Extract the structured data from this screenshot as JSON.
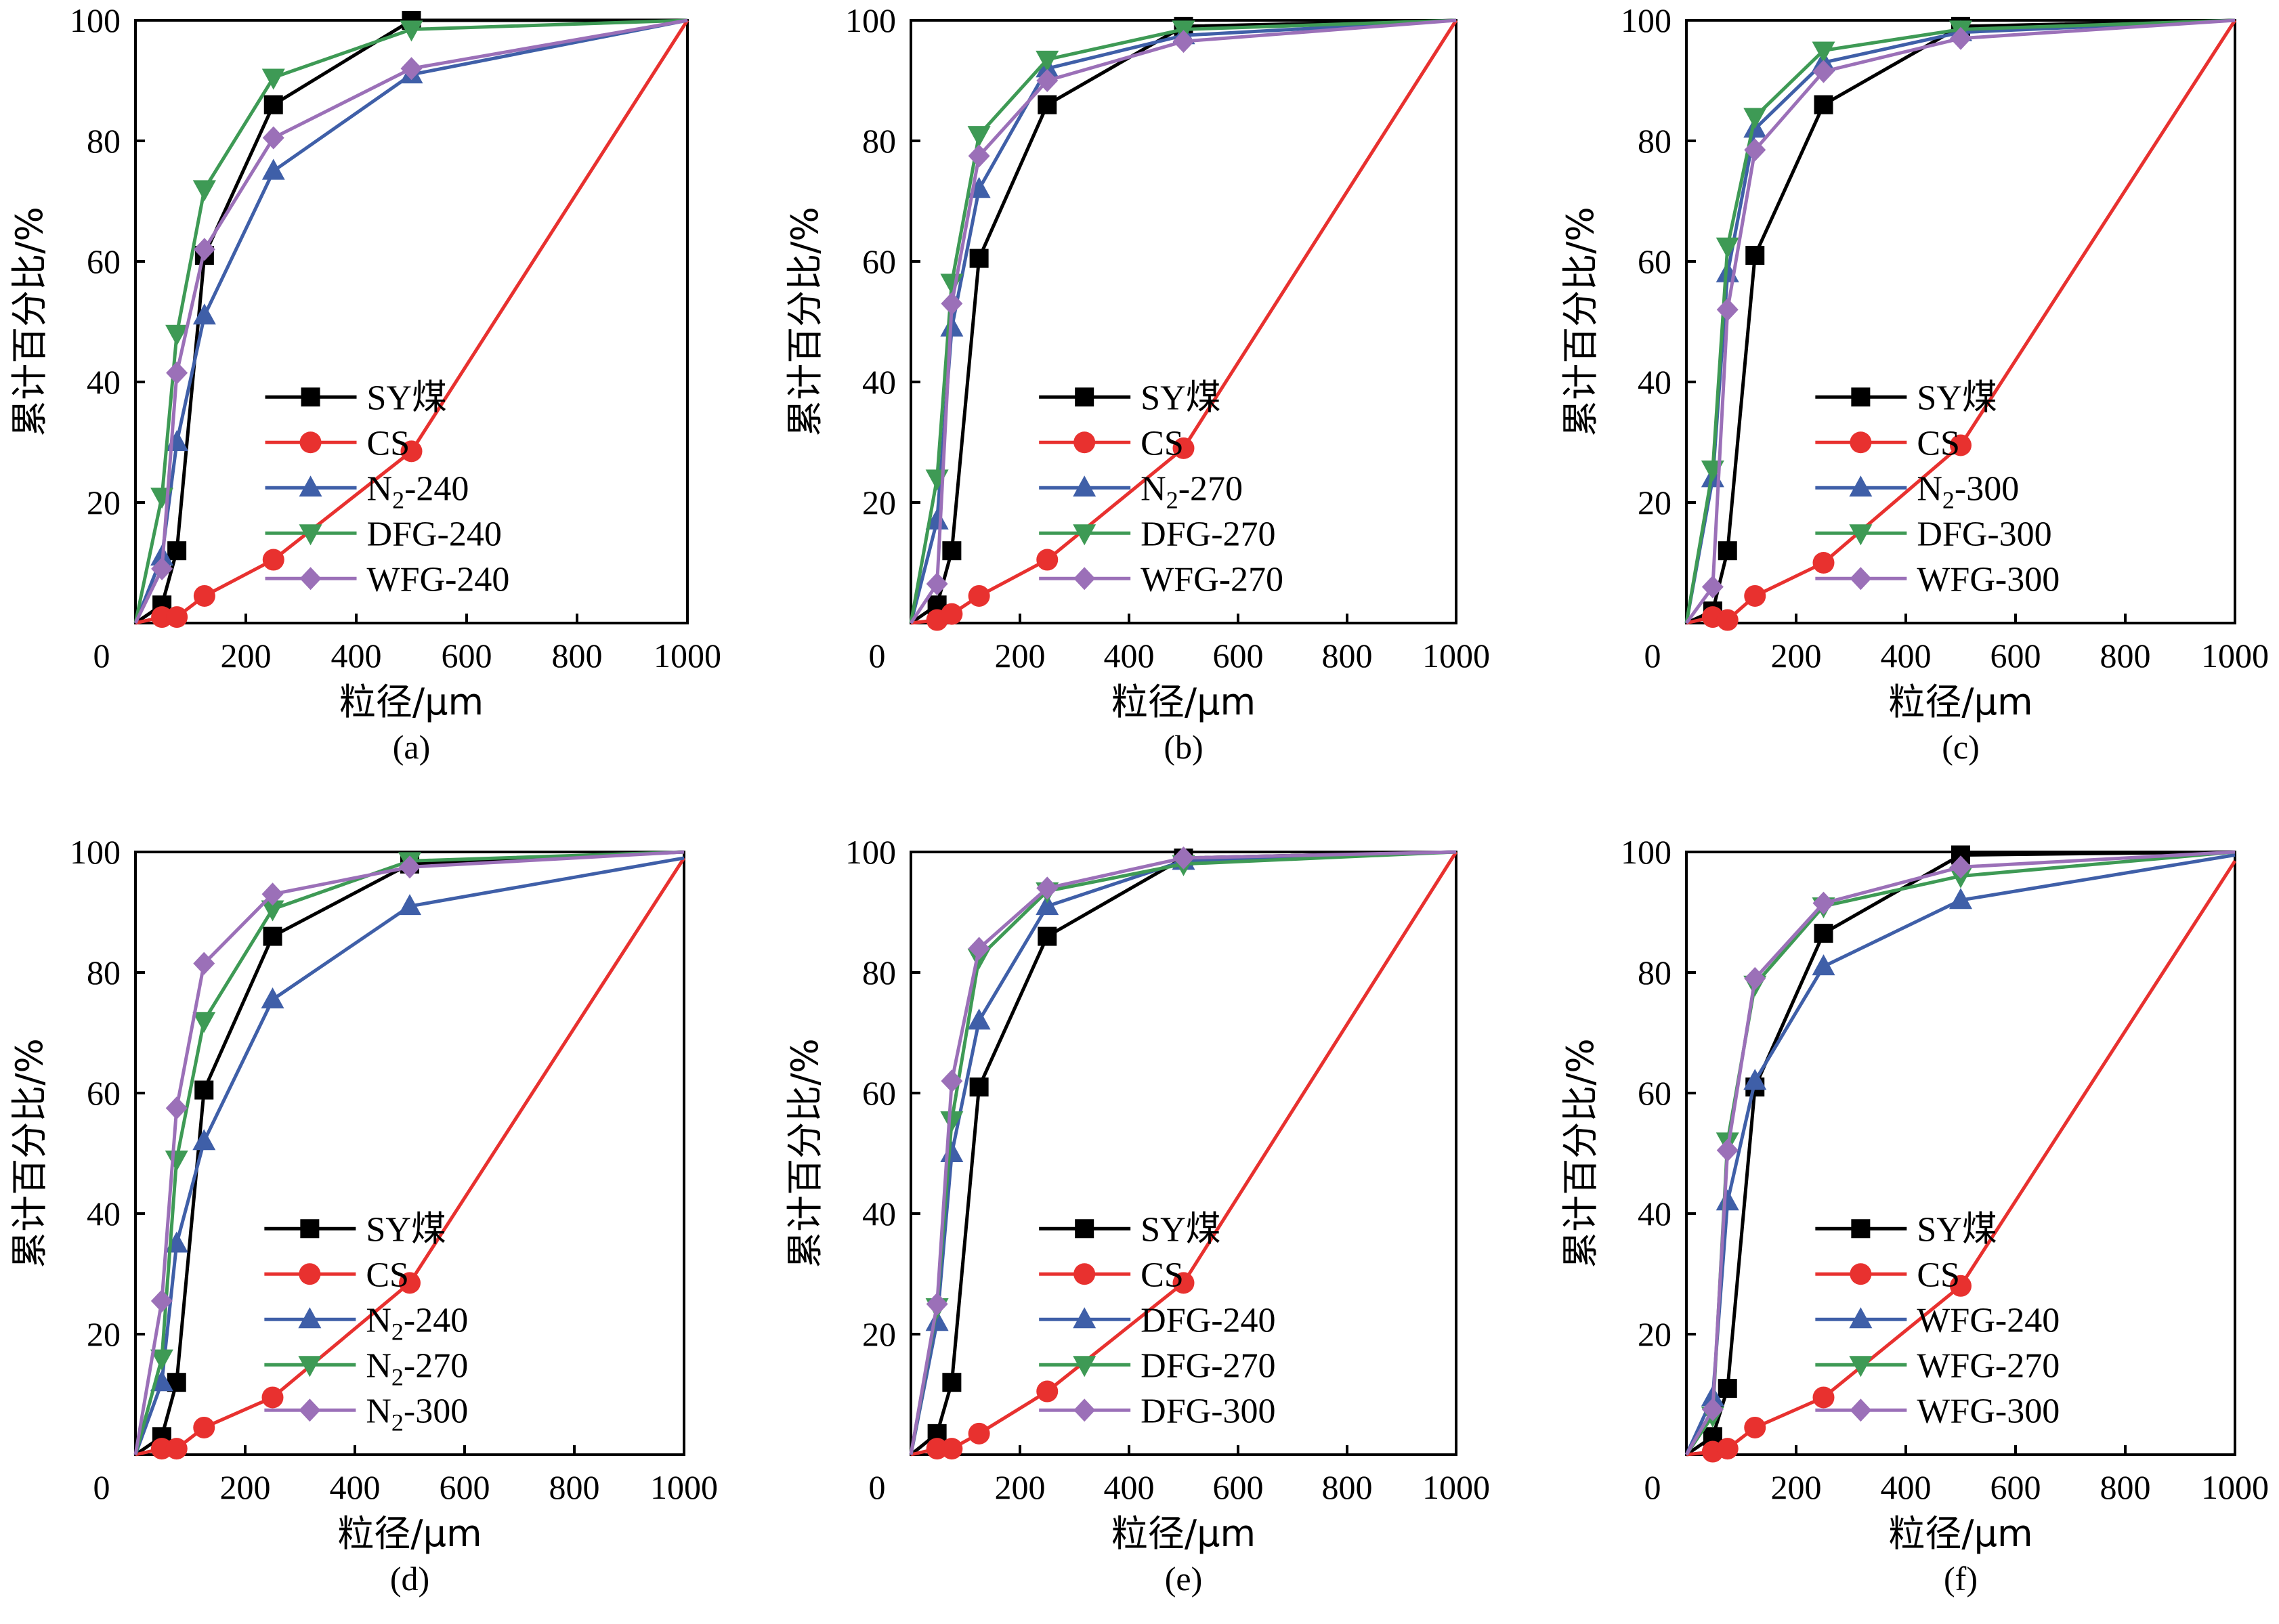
{
  "figure": {
    "x_title": "粒径/μm",
    "y_title": "累计百分比/%"
  },
  "chart_data": [
    {
      "type": "line",
      "panel_label": "(a)",
      "xlabel": "粒径/μm",
      "ylabel": "累计百分比/%",
      "xlim": [
        0,
        1000
      ],
      "ylim": [
        0,
        100
      ],
      "x_ticks": [
        0,
        200,
        400,
        600,
        800,
        1000
      ],
      "y_ticks": [
        20,
        40,
        60,
        80,
        100
      ],
      "legend_position": "bottom-right",
      "series": [
        {
          "name": "SY煤",
          "color": "#000000",
          "marker": "square",
          "x": [
            0,
            48,
            75,
            125,
            250,
            500,
            1000
          ],
          "y": [
            0,
            3,
            12,
            61,
            86,
            100,
            100
          ]
        },
        {
          "name": "CS",
          "color": "#e8312f",
          "marker": "circle",
          "x": [
            0,
            48,
            75,
            125,
            250,
            500,
            1000
          ],
          "y": [
            0,
            1,
            1,
            4.5,
            10.5,
            28.5,
            100
          ]
        },
        {
          "name": "N2-240",
          "label_main": "N",
          "label_sub": "2",
          "label_rest": "-240",
          "color": "#3f5fa8",
          "marker": "triangle-up",
          "x": [
            0,
            48,
            75,
            125,
            250,
            500,
            1000
          ],
          "y": [
            0,
            11,
            30,
            51,
            75,
            91,
            100
          ]
        },
        {
          "name": "DFG-240",
          "color": "#3e9a55",
          "marker": "triangle-down",
          "x": [
            0,
            48,
            75,
            125,
            250,
            500,
            1000
          ],
          "y": [
            0,
            21,
            48,
            72,
            90.5,
            98.5,
            100
          ]
        },
        {
          "name": "WFG-240",
          "color": "#9b70b8",
          "marker": "diamond",
          "x": [
            0,
            48,
            75,
            125,
            250,
            500,
            1000
          ],
          "y": [
            0,
            9,
            41.5,
            62,
            80.5,
            92,
            100
          ]
        }
      ]
    },
    {
      "type": "line",
      "panel_label": "(b)",
      "xlabel": "粒径/μm",
      "ylabel": "累计百分比/%",
      "xlim": [
        0,
        1000
      ],
      "ylim": [
        0,
        100
      ],
      "x_ticks": [
        0,
        200,
        400,
        600,
        800,
        1000
      ],
      "y_ticks": [
        20,
        40,
        60,
        80,
        100
      ],
      "legend_position": "bottom-right",
      "series": [
        {
          "name": "SY煤",
          "color": "#000000",
          "marker": "square",
          "x": [
            0,
            48,
            75,
            125,
            250,
            500,
            1000
          ],
          "y": [
            0,
            3,
            12,
            60.5,
            86,
            99,
            100
          ]
        },
        {
          "name": "CS",
          "color": "#e8312f",
          "marker": "circle",
          "x": [
            0,
            48,
            75,
            125,
            250,
            500,
            1000
          ],
          "y": [
            0,
            0.5,
            1.5,
            4.5,
            10.5,
            29,
            100
          ]
        },
        {
          "name": "N2-270",
          "label_main": "N",
          "label_sub": "2",
          "label_rest": "-270",
          "color": "#3f5fa8",
          "marker": "triangle-up",
          "x": [
            0,
            48,
            75,
            125,
            250,
            500,
            1000
          ],
          "y": [
            0,
            17,
            49,
            72,
            92,
            97.5,
            100
          ]
        },
        {
          "name": "DFG-270",
          "color": "#3e9a55",
          "marker": "triangle-down",
          "x": [
            0,
            48,
            75,
            125,
            250,
            500,
            1000
          ],
          "y": [
            0,
            24,
            56.5,
            81,
            93.5,
            98.5,
            100
          ]
        },
        {
          "name": "WFG-270",
          "color": "#9b70b8",
          "marker": "diamond",
          "x": [
            0,
            48,
            75,
            125,
            250,
            500,
            1000
          ],
          "y": [
            0,
            6.5,
            53,
            77.5,
            90,
            96.5,
            100
          ]
        }
      ]
    },
    {
      "type": "line",
      "panel_label": "(c)",
      "xlabel": "粒径/μm",
      "ylabel": "累计百分比/%",
      "xlim": [
        0,
        1000
      ],
      "ylim": [
        0,
        100
      ],
      "x_ticks": [
        0,
        200,
        400,
        600,
        800,
        1000
      ],
      "y_ticks": [
        20,
        40,
        60,
        80,
        100
      ],
      "legend_position": "bottom-right",
      "series": [
        {
          "name": "SY煤",
          "color": "#000000",
          "marker": "square",
          "x": [
            0,
            48,
            75,
            125,
            250,
            500,
            1000
          ],
          "y": [
            0,
            2,
            12,
            61,
            86,
            99,
            100
          ]
        },
        {
          "name": "CS",
          "color": "#e8312f",
          "marker": "circle",
          "x": [
            0,
            48,
            75,
            125,
            250,
            500,
            1000
          ],
          "y": [
            0,
            1,
            0.5,
            4.5,
            10,
            29.5,
            100
          ]
        },
        {
          "name": "N2-300",
          "label_main": "N",
          "label_sub": "2",
          "label_rest": "-300",
          "color": "#3f5fa8",
          "marker": "triangle-up",
          "x": [
            0,
            48,
            75,
            125,
            250,
            500,
            1000
          ],
          "y": [
            0,
            24,
            58,
            82,
            93,
            98,
            100
          ]
        },
        {
          "name": "DFG-300",
          "color": "#3e9a55",
          "marker": "triangle-down",
          "x": [
            0,
            48,
            75,
            125,
            250,
            500,
            1000
          ],
          "y": [
            0,
            25.5,
            62.5,
            84,
            95,
            98.5,
            100
          ]
        },
        {
          "name": "WFG-300",
          "color": "#9b70b8",
          "marker": "diamond",
          "x": [
            0,
            48,
            75,
            125,
            250,
            500,
            1000
          ],
          "y": [
            0,
            6,
            52,
            78.5,
            91.5,
            97,
            100
          ]
        }
      ]
    },
    {
      "type": "line",
      "panel_label": "(d)",
      "xlabel": "粒径/μm",
      "ylabel": "累计百分比/%",
      "xlim": [
        0,
        1000
      ],
      "ylim": [
        0,
        100
      ],
      "x_ticks": [
        0,
        200,
        400,
        600,
        800,
        1000
      ],
      "y_ticks": [
        20,
        40,
        60,
        80,
        100
      ],
      "legend_position": "bottom-right",
      "series": [
        {
          "name": "SY煤",
          "color": "#000000",
          "marker": "square",
          "x": [
            0,
            48,
            75,
            125,
            250,
            500,
            1000
          ],
          "y": [
            0,
            3,
            12,
            60.5,
            86,
            98,
            100
          ]
        },
        {
          "name": "CS",
          "color": "#e8312f",
          "marker": "circle",
          "x": [
            0,
            48,
            75,
            125,
            250,
            500,
            1000
          ],
          "y": [
            0,
            1,
            1,
            4.5,
            9.5,
            28.5,
            99
          ]
        },
        {
          "name": "N2-240",
          "label_main": "N",
          "label_sub": "2",
          "label_rest": "-240",
          "color": "#3f5fa8",
          "marker": "triangle-up",
          "x": [
            0,
            48,
            75,
            125,
            250,
            500,
            1000
          ],
          "y": [
            0,
            12,
            35,
            52,
            75.5,
            91,
            99
          ]
        },
        {
          "name": "N2-270",
          "label_main": "N",
          "label_sub": "2",
          "label_rest": "-270",
          "color": "#3e9a55",
          "marker": "triangle-down",
          "x": [
            0,
            48,
            75,
            125,
            250,
            500,
            1000
          ],
          "y": [
            0,
            16,
            49,
            72,
            90.5,
            98.5,
            100
          ]
        },
        {
          "name": "N2-300",
          "label_main": "N",
          "label_sub": "2",
          "label_rest": "-300",
          "color": "#9b70b8",
          "marker": "diamond",
          "x": [
            0,
            48,
            75,
            125,
            250,
            500,
            1000
          ],
          "y": [
            0,
            25.5,
            57.5,
            81.5,
            93,
            97.5,
            100
          ]
        }
      ]
    },
    {
      "type": "line",
      "panel_label": "(e)",
      "xlabel": "粒径/μm",
      "ylabel": "累计百分比/%",
      "xlim": [
        0,
        1000
      ],
      "ylim": [
        0,
        100
      ],
      "x_ticks": [
        0,
        200,
        400,
        600,
        800,
        1000
      ],
      "y_ticks": [
        20,
        40,
        60,
        80,
        100
      ],
      "legend_position": "bottom-right",
      "series": [
        {
          "name": "SY煤",
          "color": "#000000",
          "marker": "square",
          "x": [
            0,
            48,
            75,
            125,
            250,
            500,
            1000
          ],
          "y": [
            0,
            3.5,
            12,
            61,
            86,
            99,
            100
          ]
        },
        {
          "name": "CS",
          "color": "#e8312f",
          "marker": "circle",
          "x": [
            0,
            48,
            75,
            125,
            250,
            500,
            1000
          ],
          "y": [
            0,
            1,
            1,
            3.5,
            10.5,
            28.5,
            100
          ]
        },
        {
          "name": "DFG-240",
          "color": "#3f5fa8",
          "marker": "triangle-up",
          "x": [
            0,
            48,
            75,
            125,
            250,
            500,
            1000
          ],
          "y": [
            0,
            22,
            50,
            72,
            91,
            98.5,
            100
          ]
        },
        {
          "name": "DFG-270",
          "color": "#3e9a55",
          "marker": "triangle-down",
          "x": [
            0,
            48,
            75,
            125,
            250,
            500,
            1000
          ],
          "y": [
            0,
            24.5,
            55.5,
            82.5,
            93.5,
            98,
            100
          ]
        },
        {
          "name": "DFG-300",
          "color": "#9b70b8",
          "marker": "diamond",
          "x": [
            0,
            48,
            75,
            125,
            250,
            500,
            1000
          ],
          "y": [
            0,
            25,
            62,
            84,
            94,
            99,
            100
          ]
        }
      ]
    },
    {
      "type": "line",
      "panel_label": "(f)",
      "xlabel": "粒径/μm",
      "ylabel": "累计百分比/%",
      "xlim": [
        0,
        1000
      ],
      "ylim": [
        0,
        100
      ],
      "x_ticks": [
        0,
        200,
        400,
        600,
        800,
        1000
      ],
      "y_ticks": [
        20,
        40,
        60,
        80,
        100
      ],
      "legend_position": "bottom-right",
      "series": [
        {
          "name": "SY煤",
          "color": "#000000",
          "marker": "square",
          "x": [
            0,
            48,
            75,
            125,
            250,
            500,
            1000
          ],
          "y": [
            0,
            3,
            11,
            61,
            86.5,
            99.5,
            100
          ]
        },
        {
          "name": "CS",
          "color": "#e8312f",
          "marker": "circle",
          "x": [
            0,
            48,
            75,
            125,
            250,
            500,
            1000
          ],
          "y": [
            0,
            0.5,
            1,
            4.5,
            9.5,
            28,
            98.5
          ]
        },
        {
          "name": "WFG-240",
          "color": "#3f5fa8",
          "marker": "triangle-up",
          "x": [
            0,
            48,
            75,
            125,
            250,
            500,
            1000
          ],
          "y": [
            0,
            9.5,
            42,
            62,
            81,
            92,
            99.5
          ]
        },
        {
          "name": "WFG-270",
          "color": "#3e9a55",
          "marker": "triangle-down",
          "x": [
            0,
            48,
            75,
            125,
            250,
            500,
            1000
          ],
          "y": [
            0,
            6.5,
            52,
            78,
            91,
            96,
            100
          ]
        },
        {
          "name": "WFG-300",
          "color": "#9b70b8",
          "marker": "diamond",
          "x": [
            0,
            48,
            75,
            125,
            250,
            500,
            1000
          ],
          "y": [
            0,
            7.5,
            50.5,
            79,
            91.5,
            97.5,
            100
          ]
        }
      ]
    }
  ]
}
